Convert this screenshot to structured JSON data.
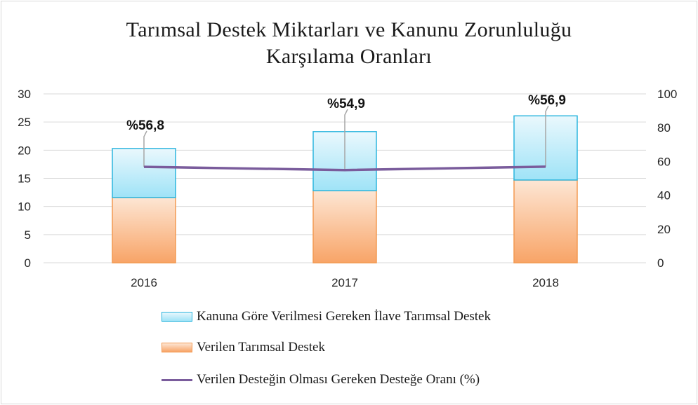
{
  "chart_data": {
    "type": "bar",
    "title_lines": [
      "Tarımsal Destek Miktarları ve Kanunu Zorunluluğu",
      "Karşılama Oranları"
    ],
    "categories": [
      "2016",
      "2017",
      "2018"
    ],
    "series": [
      {
        "name": "Verilen Tarımsal Destek",
        "kind": "bar-stacked",
        "axis": "left",
        "values": [
          11.6,
          12.8,
          14.7
        ],
        "color": "#f8a467"
      },
      {
        "name": "Kanuna Göre Verilmesi Gereken İlave Tarımsal Destek",
        "kind": "bar-stacked",
        "axis": "left",
        "values": [
          8.7,
          10.5,
          11.4
        ],
        "color": "#4bc4e8"
      },
      {
        "name": "Verilen Desteğin Olması Gereken Desteğe Oranı (%)",
        "kind": "line",
        "axis": "right",
        "values": [
          56.8,
          54.9,
          56.9
        ],
        "color": "#7a5c9c"
      }
    ],
    "data_labels": [
      "%56,8",
      "%54,9",
      "%56,9"
    ],
    "y_left": {
      "range": [
        0,
        30
      ],
      "ticks": [
        "0",
        "5",
        "10",
        "15",
        "20",
        "25",
        "30"
      ]
    },
    "y_right": {
      "range": [
        0,
        100
      ],
      "ticks": [
        "0",
        "20",
        "40",
        "60",
        "80",
        "100"
      ]
    },
    "grid": true,
    "legend_position": "bottom"
  }
}
